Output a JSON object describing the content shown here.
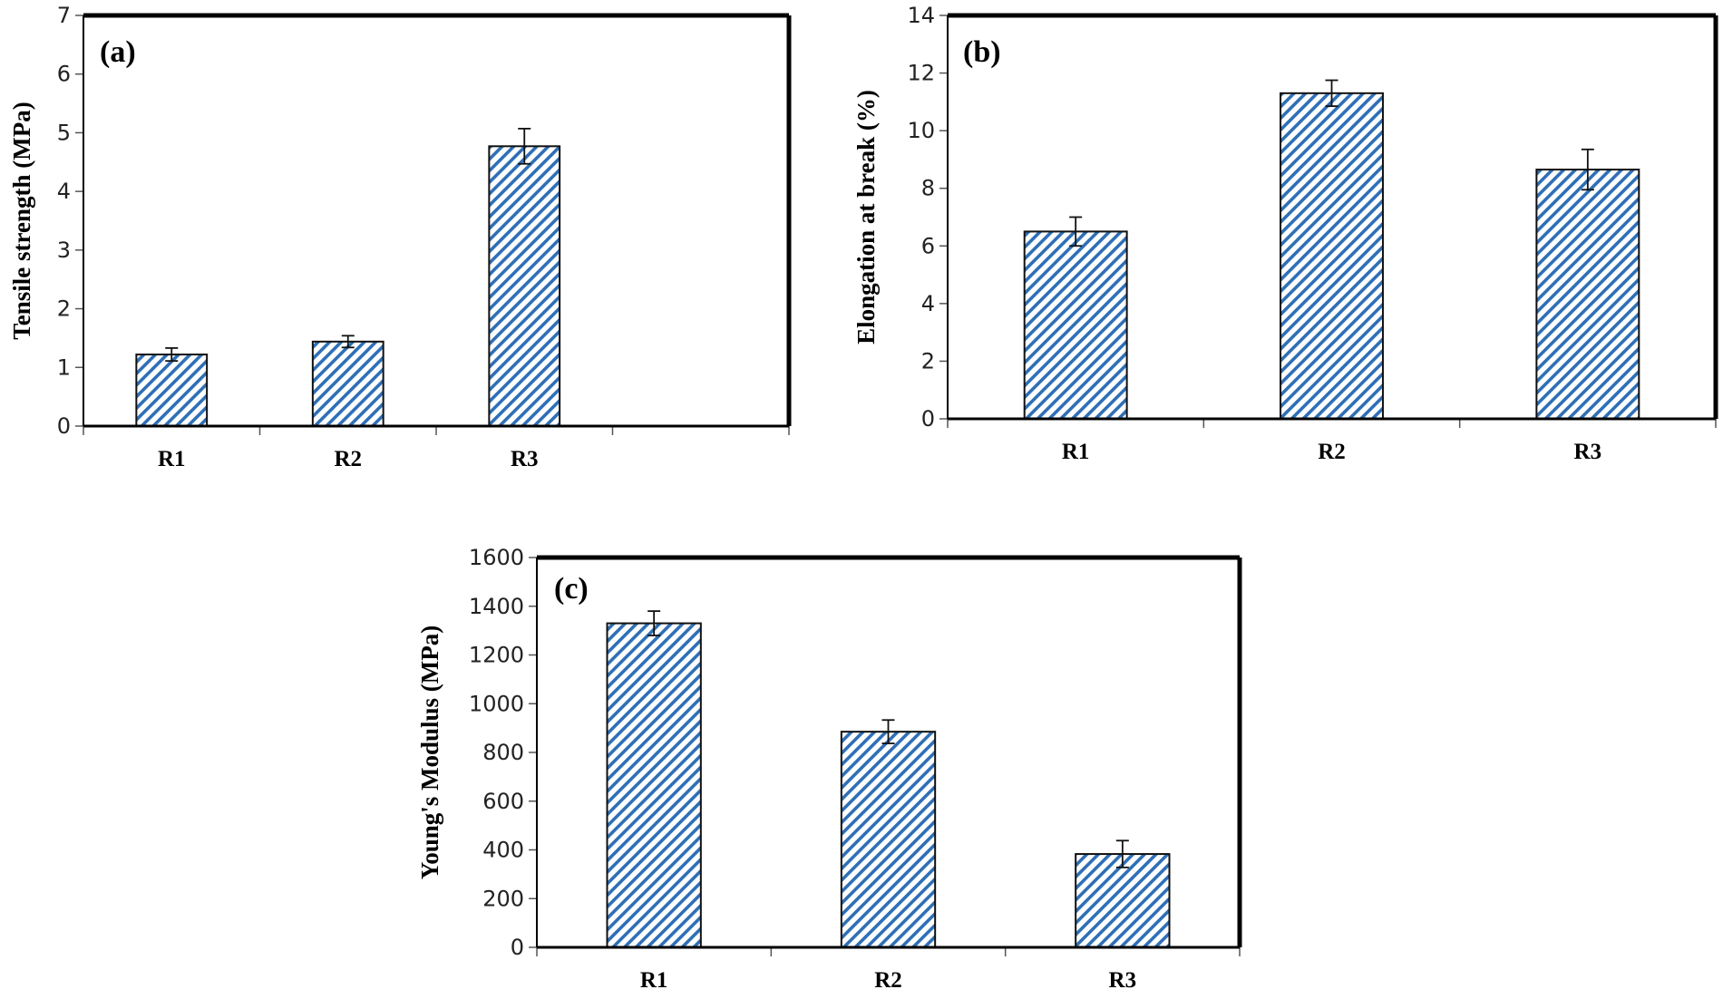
{
  "chart_data": [
    {
      "type": "bar",
      "panel_label": "(a)",
      "title": "",
      "xlabel": "",
      "ylabel": "Tensile strength (MPa)",
      "categories": [
        "R1",
        "R2",
        "R3"
      ],
      "values": [
        1.22,
        1.44,
        4.77
      ],
      "errors": [
        0.11,
        0.1,
        0.3
      ],
      "ylim": [
        0,
        7
      ],
      "yticks": [
        0,
        1,
        2,
        3,
        4,
        5,
        6,
        7
      ],
      "category_slots": 4,
      "grid": false,
      "bar_pattern": "diagonal-hatch",
      "bar_color": "#2e6fb6"
    },
    {
      "type": "bar",
      "panel_label": "(b)",
      "title": "",
      "xlabel": "",
      "ylabel": "Elongation at break (%)",
      "categories": [
        "R1",
        "R2",
        "R3"
      ],
      "values": [
        6.5,
        11.3,
        8.65
      ],
      "errors": [
        0.5,
        0.45,
        0.7
      ],
      "ylim": [
        0,
        14
      ],
      "yticks": [
        0,
        2,
        4,
        6,
        8,
        10,
        12,
        14
      ],
      "category_slots": 3,
      "grid": false,
      "bar_pattern": "diagonal-hatch",
      "bar_color": "#2e6fb6"
    },
    {
      "type": "bar",
      "panel_label": "(c)",
      "title": "",
      "xlabel": "",
      "ylabel": "Young's Modulus (MPa)",
      "categories": [
        "R1",
        "R2",
        "R3"
      ],
      "values": [
        1330,
        885,
        383
      ],
      "errors": [
        50,
        48,
        55
      ],
      "ylim": [
        0,
        1600
      ],
      "yticks": [
        0,
        200,
        400,
        600,
        800,
        1000,
        1200,
        1400,
        1600
      ],
      "category_slots": 3,
      "grid": false,
      "bar_pattern": "diagonal-hatch",
      "bar_color": "#2e6fb6"
    }
  ]
}
